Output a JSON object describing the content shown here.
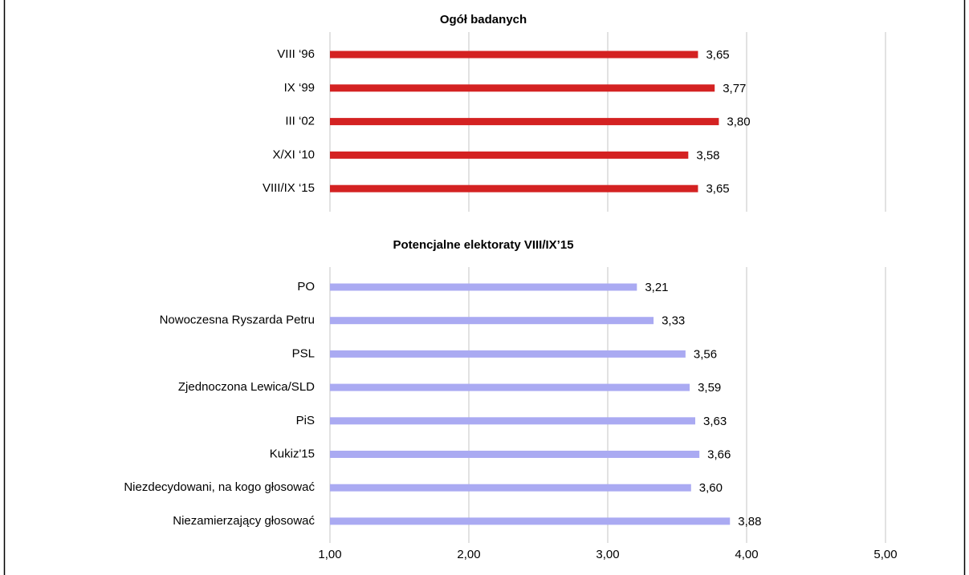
{
  "chart_data": [
    {
      "type": "bar",
      "orientation": "horizontal",
      "title": "Ogół badanych",
      "categories": [
        "VIII ‘96",
        "IX ‘99",
        "III ‘02",
        "X/XI ‘10",
        "VIII/IX ‘15"
      ],
      "values": [
        3.65,
        3.77,
        3.8,
        3.58,
        3.65
      ],
      "value_labels": [
        "3,65",
        "3,77",
        "3,80",
        "3,58",
        "3,65"
      ],
      "color": "#d42222",
      "xlim": [
        1,
        5
      ],
      "xticks": [
        1,
        2,
        3,
        4,
        5
      ],
      "grid": true
    },
    {
      "type": "bar",
      "orientation": "horizontal",
      "title": "Potencjalne elektoraty VIII/IX’15",
      "categories": [
        "PO",
        "Nowoczesna Ryszarda Petru",
        "PSL",
        "Zjednoczona Lewica/SLD",
        "PiS",
        "Kukiz'15",
        "Niezdecydowani, na kogo głosować",
        "Niezamierzający głosować"
      ],
      "values": [
        3.21,
        3.33,
        3.56,
        3.59,
        3.63,
        3.66,
        3.6,
        3.88
      ],
      "value_labels": [
        "3,21",
        "3,33",
        "3,56",
        "3,59",
        "3,63",
        "3,66",
        "3,60",
        "3,88"
      ],
      "color": "#aaaaf2",
      "xlim": [
        1,
        5
      ],
      "xticks": [
        {
          "value": 1,
          "label": "1,00"
        },
        {
          "value": 2,
          "label": "2,00"
        },
        {
          "value": 3,
          "label": "3,00"
        },
        {
          "value": 4,
          "label": "4,00"
        },
        {
          "value": 5,
          "label": "5,00"
        }
      ],
      "grid": true
    }
  ]
}
